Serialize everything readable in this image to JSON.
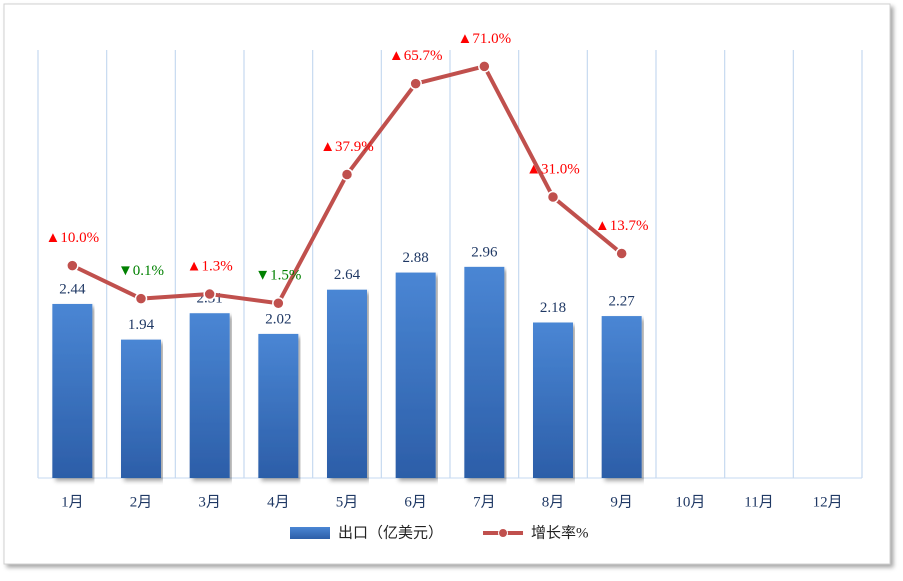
{
  "chart_data": {
    "type": "bar-line",
    "categories": [
      "1月",
      "2月",
      "3月",
      "4月",
      "5月",
      "6月",
      "7月",
      "8月",
      "9月",
      "10月",
      "11月",
      "12月"
    ],
    "series": [
      {
        "name": "出口（亿美元）",
        "type": "bar",
        "color": "#3a75c4",
        "values": [
          2.44,
          1.94,
          2.31,
          2.02,
          2.64,
          2.88,
          2.96,
          2.18,
          2.27,
          null,
          null,
          null
        ]
      },
      {
        "name": "增长率%",
        "type": "line",
        "axis": "y2",
        "color": "#c0504d",
        "values": [
          10.0,
          -0.1,
          1.3,
          -1.5,
          37.9,
          65.7,
          71.0,
          31.0,
          13.7,
          null,
          null,
          null
        ],
        "value_labels": [
          "▲10.0%",
          "▼0.1%",
          "▲1.3%",
          "▼1.5%",
          "▲37.9%",
          "▲65.7%",
          "▲71.0%",
          "▲31.0%",
          "▲13.7%",
          null,
          null,
          null
        ],
        "up_color": "#ff0000",
        "down_color": "#008000"
      }
    ],
    "ylim": [
      0,
      6
    ],
    "y2lim": [
      -55,
      76
    ],
    "grid": true
  }
}
